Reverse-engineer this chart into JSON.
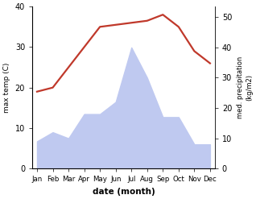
{
  "months": [
    "Jan",
    "Feb",
    "Mar",
    "Apr",
    "May",
    "Jun",
    "Jul",
    "Aug",
    "Sep",
    "Oct",
    "Nov",
    "Dec"
  ],
  "month_positions": [
    0,
    1,
    2,
    3,
    4,
    5,
    6,
    7,
    8,
    9,
    10,
    11
  ],
  "temperature": [
    19,
    20,
    25,
    30,
    35,
    35.5,
    36,
    36.5,
    38,
    35,
    29,
    26
  ],
  "precipitation_mm": [
    9,
    12,
    10,
    18,
    18,
    22,
    40,
    30,
    17,
    17,
    8,
    8
  ],
  "precip_fill_color": "#bfc9f0",
  "temp_color": "#c0392b",
  "temp_ylim": [
    0,
    40
  ],
  "precip_ylim": [
    0,
    53.5
  ],
  "temp_yticks": [
    0,
    10,
    20,
    30,
    40
  ],
  "precip_yticks": [
    0,
    10,
    20,
    30,
    40,
    50
  ],
  "xlabel": "date (month)",
  "ylabel_left": "max temp (C)",
  "ylabel_right": "med. precipitation\n(kg/m2)",
  "bg_color": "#ffffff",
  "fig_width": 3.18,
  "fig_height": 2.47,
  "dpi": 100
}
